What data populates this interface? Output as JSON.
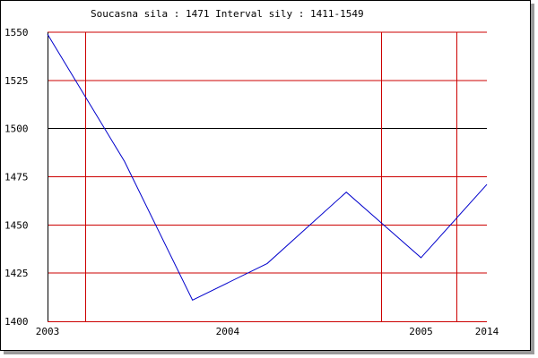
{
  "chart_data": {
    "type": "line",
    "title": "Soucasna sila : 1471  Interval sily : 1411-1549",
    "xlabel": "",
    "ylabel": "",
    "x_tick_labels": [
      "2003",
      "2004",
      "2005",
      "2014"
    ],
    "x_tick_positions": [
      0,
      4.1,
      8.5,
      10
    ],
    "x_grid_positions": [
      0.85,
      7.6,
      9.3
    ],
    "ylim": [
      1400,
      1550
    ],
    "yticks": [
      1400,
      1425,
      1450,
      1475,
      1500,
      1525,
      1550
    ],
    "highlight_gridline": 1500,
    "grid": true,
    "series": [
      {
        "x": [
          0,
          1.75,
          3.3,
          5.0,
          6.8,
          8.5,
          10
        ],
        "values": [
          1549,
          1483,
          1411,
          1430,
          1467,
          1433,
          1471
        ]
      }
    ],
    "colors": {
      "grid": "#cc0000",
      "highlight": "#000000",
      "line": "#0000cc",
      "axis": "#000000"
    }
  }
}
